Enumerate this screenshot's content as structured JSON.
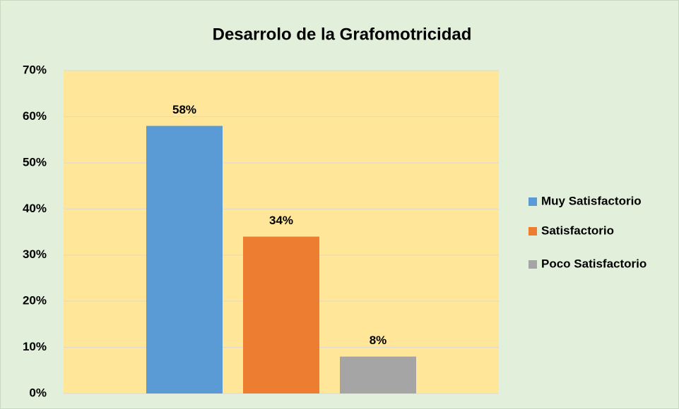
{
  "chart_data": {
    "type": "bar",
    "title": "Desarrolo de la Grafomotricidad",
    "series": [
      {
        "name": "Muy Satisfactorio",
        "color": "#5b9bd5",
        "values": [
          58
        ],
        "value_labels": [
          "58%"
        ]
      },
      {
        "name": "Satisfactorio",
        "color": "#ed7d31",
        "values": [
          34
        ],
        "value_labels": [
          "34%"
        ]
      },
      {
        "name": "Poco Satisfactorio",
        "color": "#a5a5a5",
        "values": [
          8
        ],
        "value_labels": [
          "8%"
        ]
      }
    ],
    "ylim": [
      0,
      70
    ],
    "yticks": [
      {
        "value": 0,
        "label": "0%"
      },
      {
        "value": 10,
        "label": "10%"
      },
      {
        "value": 20,
        "label": "20%"
      },
      {
        "value": 30,
        "label": "30%"
      },
      {
        "value": 40,
        "label": "40%"
      },
      {
        "value": 50,
        "label": "50%"
      },
      {
        "value": 60,
        "label": "60%"
      },
      {
        "value": 70,
        "label": "70%"
      }
    ],
    "grid": true,
    "legend": "right"
  }
}
